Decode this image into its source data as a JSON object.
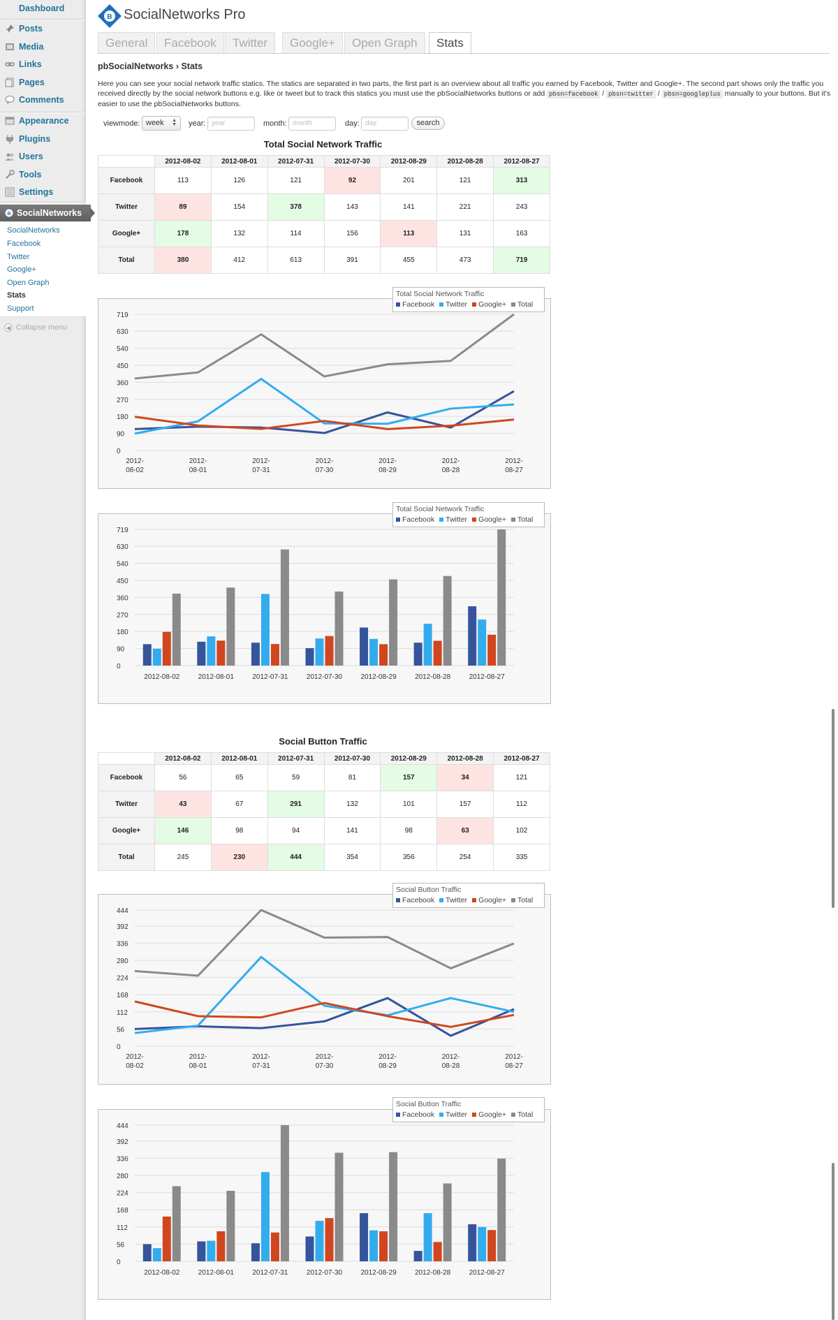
{
  "sidebar": {
    "items": [
      {
        "label": "Dashboard",
        "icon": "dashboard-icon"
      },
      {
        "label": "Posts",
        "icon": "pin-icon"
      },
      {
        "label": "Media",
        "icon": "media-icon"
      },
      {
        "label": "Links",
        "icon": "link-icon"
      },
      {
        "label": "Pages",
        "icon": "page-icon"
      },
      {
        "label": "Comments",
        "icon": "comment-icon"
      },
      {
        "label": "Appearance",
        "icon": "brush-icon"
      },
      {
        "label": "Plugins",
        "icon": "plug-icon"
      },
      {
        "label": "Users",
        "icon": "users-icon"
      },
      {
        "label": "Tools",
        "icon": "wrench-icon"
      },
      {
        "label": "Settings",
        "icon": "settings-icon"
      }
    ],
    "active_menu": "SocialNetworks",
    "submenu": [
      "SocialNetworks",
      "Facebook",
      "Twitter",
      "Google+",
      "Open Graph",
      "Stats",
      "Support"
    ],
    "current_submenu": "Stats",
    "collapse_label": "Collapse menu"
  },
  "header": {
    "app_title": "SocialNetworks Pro",
    "tabs": [
      "General",
      "Facebook",
      "Twitter",
      "Google+",
      "Open Graph",
      "Stats"
    ],
    "active_tab": "Stats"
  },
  "breadcrumb": "pbSocialNetworks › Stats",
  "intro": {
    "text_1": "Here you can see your social network traffic statics. The statics are separated in two parts, the first part is an overview about all traffic you earned by Facebook, Twitter and Google+. The second part shows only the traffic you received directly by the social network buttons e.g. like or tweet but to track this statics you must use the pbSocialNetworks buttons or add ",
    "code_1": "pbsn=facebook",
    "sep_1": " / ",
    "code_2": "pbsn=twitter",
    "sep_2": " / ",
    "code_3": "pbsn=googleplus",
    "text_2": " manually to your buttons. But it's easier to use the pbSocialNetworks buttons."
  },
  "filter": {
    "viewmode_label": "viewmode:",
    "viewmode_value": "week",
    "year_label": "year:",
    "year_placeholder": "year",
    "month_label": "month:",
    "month_placeholder": "month",
    "day_label": "day:",
    "day_placeholder": "day",
    "search_label": "search"
  },
  "colors": {
    "facebook": "#35549c",
    "twitter": "#33acee",
    "googleplus": "#d0461e",
    "total": "#8a8a8a",
    "low_cell": "#fde4e2",
    "high_cell": "#e4fbe4",
    "link": "#21759b"
  },
  "total_traffic": {
    "title": "Total Social Network Traffic",
    "columns": [
      "2012-08-02",
      "2012-08-01",
      "2012-07-31",
      "2012-07-30",
      "2012-08-29",
      "2012-08-28",
      "2012-08-27"
    ],
    "rows": [
      {
        "label": "Facebook",
        "values": [
          "113",
          "126",
          "121",
          "92",
          "201",
          "121",
          "313"
        ],
        "low_index": 3,
        "high_index": 6
      },
      {
        "label": "Twitter",
        "values": [
          "89",
          "154",
          "378",
          "143",
          "141",
          "221",
          "243"
        ],
        "low_index": 0,
        "high_index": 2
      },
      {
        "label": "Google+",
        "values": [
          "178",
          "132",
          "114",
          "156",
          "113",
          "131",
          "163"
        ],
        "low_index": 4,
        "high_index": 0
      },
      {
        "label": "Total",
        "values": [
          "380",
          "412",
          "613",
          "391",
          "455",
          "473",
          "719"
        ],
        "low_index": 0,
        "high_index": 6
      }
    ]
  },
  "button_traffic": {
    "title": "Social Button Traffic",
    "columns": [
      "2012-08-02",
      "2012-08-01",
      "2012-07-31",
      "2012-07-30",
      "2012-08-29",
      "2012-08-28",
      "2012-08-27"
    ],
    "rows": [
      {
        "label": "Facebook",
        "values": [
          "56",
          "65",
          "59",
          "81",
          "157",
          "34",
          "121"
        ],
        "low_index": 5,
        "high_index": 4
      },
      {
        "label": "Twitter",
        "values": [
          "43",
          "67",
          "291",
          "132",
          "101",
          "157",
          "112"
        ],
        "low_index": 0,
        "high_index": 2
      },
      {
        "label": "Google+",
        "values": [
          "146",
          "98",
          "94",
          "141",
          "98",
          "63",
          "102"
        ],
        "low_index": 5,
        "high_index": 0
      },
      {
        "label": "Total",
        "values": [
          "245",
          "230",
          "444",
          "354",
          "356",
          "254",
          "335"
        ],
        "low_index": 1,
        "high_index": 2
      }
    ]
  },
  "chart_data": [
    {
      "type": "line",
      "title": "Total Social Network Traffic",
      "categories": [
        "2012-08-02",
        "2012-08-01",
        "2012-07-31",
        "2012-07-30",
        "2012-08-29",
        "2012-08-28",
        "2012-08-27"
      ],
      "series": [
        {
          "name": "Facebook",
          "values": [
            113,
            126,
            121,
            92,
            201,
            121,
            313
          ]
        },
        {
          "name": "Twitter",
          "values": [
            89,
            154,
            378,
            143,
            141,
            221,
            243
          ]
        },
        {
          "name": "Google+",
          "values": [
            178,
            132,
            114,
            156,
            113,
            131,
            163
          ]
        },
        {
          "name": "Total",
          "values": [
            380,
            412,
            613,
            391,
            455,
            473,
            719
          ]
        }
      ],
      "yticks": [
        0,
        90,
        180,
        270,
        360,
        450,
        540,
        630,
        719
      ],
      "ylim": [
        0,
        719
      ],
      "legend_position": "top-right"
    },
    {
      "type": "bar",
      "title": "Total Social Network Traffic",
      "categories": [
        "2012-08-02",
        "2012-08-01",
        "2012-07-31",
        "2012-07-30",
        "2012-08-29",
        "2012-08-28",
        "2012-08-27"
      ],
      "series": [
        {
          "name": "Facebook",
          "values": [
            113,
            126,
            121,
            92,
            201,
            121,
            313
          ]
        },
        {
          "name": "Twitter",
          "values": [
            89,
            154,
            378,
            143,
            141,
            221,
            243
          ]
        },
        {
          "name": "Google+",
          "values": [
            178,
            132,
            114,
            156,
            113,
            131,
            163
          ]
        },
        {
          "name": "Total",
          "values": [
            380,
            412,
            613,
            391,
            455,
            473,
            719
          ]
        }
      ],
      "yticks": [
        0,
        90,
        180,
        270,
        360,
        450,
        540,
        630,
        719
      ],
      "ylim": [
        0,
        719
      ],
      "legend_position": "top-right"
    },
    {
      "type": "line",
      "title": "Social Button Traffic",
      "categories": [
        "2012-08-02",
        "2012-08-01",
        "2012-07-31",
        "2012-07-30",
        "2012-08-29",
        "2012-08-28",
        "2012-08-27"
      ],
      "series": [
        {
          "name": "Facebook",
          "values": [
            56,
            65,
            59,
            81,
            157,
            34,
            121
          ]
        },
        {
          "name": "Twitter",
          "values": [
            43,
            67,
            291,
            132,
            101,
            157,
            112
          ]
        },
        {
          "name": "Google+",
          "values": [
            146,
            98,
            94,
            141,
            98,
            63,
            102
          ]
        },
        {
          "name": "Total",
          "values": [
            245,
            230,
            444,
            354,
            356,
            254,
            335
          ]
        }
      ],
      "yticks": [
        0,
        56,
        112,
        168,
        224,
        280,
        336,
        392,
        444
      ],
      "ylim": [
        0,
        444
      ],
      "legend_position": "top-right"
    },
    {
      "type": "bar",
      "title": "Social Button Traffic",
      "categories": [
        "2012-08-02",
        "2012-08-01",
        "2012-07-31",
        "2012-07-30",
        "2012-08-29",
        "2012-08-28",
        "2012-08-27"
      ],
      "series": [
        {
          "name": "Facebook",
          "values": [
            56,
            65,
            59,
            81,
            157,
            34,
            121
          ]
        },
        {
          "name": "Twitter",
          "values": [
            43,
            67,
            291,
            132,
            101,
            157,
            112
          ]
        },
        {
          "name": "Google+",
          "values": [
            146,
            98,
            94,
            141,
            98,
            63,
            102
          ]
        },
        {
          "name": "Total",
          "values": [
            245,
            230,
            444,
            354,
            356,
            254,
            335
          ]
        }
      ],
      "yticks": [
        0,
        56,
        112,
        168,
        224,
        280,
        336,
        392,
        444
      ],
      "ylim": [
        0,
        444
      ],
      "legend_position": "top-right"
    }
  ]
}
